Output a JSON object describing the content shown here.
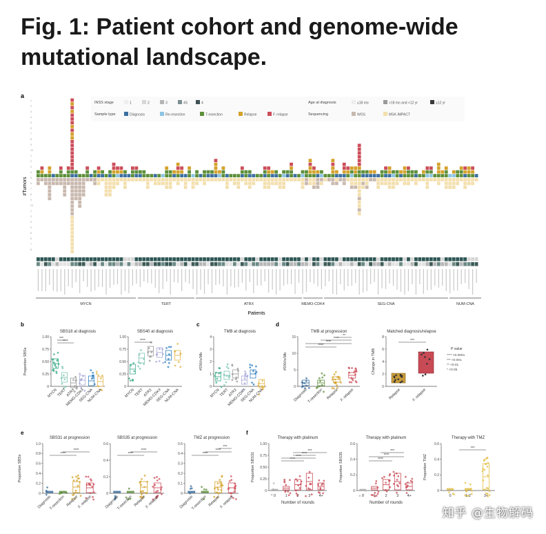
{
  "title": "Fig. 1: Patient cohort and genome-wide mutational landscape.",
  "panel_a": {
    "label": "a",
    "y_title": "#Tumors",
    "x_title": "Patients",
    "legend": {
      "inss_title": "INSS stage",
      "inss_items": [
        "1",
        "2",
        "3",
        "4S",
        "4"
      ],
      "sample_title": "Sample type",
      "sample_items": [
        "Diagnosis",
        "Re-resection",
        "T-resection",
        "Relapse",
        "F. relapse"
      ],
      "age_title": "Age at diagnosis",
      "age_items": [
        "≤18 mo",
        ">18 mo and <12 yr",
        "≥12 yr"
      ],
      "seq_title": "Sequencing",
      "seq_items": [
        "WGS",
        "MSK-IMPACT"
      ]
    },
    "groups": [
      "MYCN",
      "TERT",
      "ATRX",
      "MEMO-CDK4",
      "SEG-CNA",
      "NUM-CNA"
    ]
  },
  "panel_b": {
    "label": "b",
    "plots": [
      {
        "title": "SBS18 at diagnosis",
        "ylabel": "Proportion SBSs"
      },
      {
        "title": "SBS40 at diagnosis",
        "ylabel": ""
      }
    ],
    "categories": [
      "MYCN",
      "TERT",
      "ATRX",
      "MEMO-CDK4",
      "SEG-CNA",
      "NUM-CNA"
    ]
  },
  "panel_c": {
    "label": "c",
    "title": "TMB at diagnosis",
    "ylabel": "#SNVs/Mb",
    "categories": [
      "MYCN",
      "TERT",
      "ATRX",
      "MEMO-CDK4",
      "SEG-CNA",
      "NUM-CNA"
    ]
  },
  "panel_d": {
    "label": "d",
    "plots": [
      {
        "title": "TMB at progression",
        "ylabel": "#SNVs/Mb",
        "categories": [
          "Diagnosis",
          "T-resection",
          "Relapse",
          "F. relapse"
        ]
      },
      {
        "title": "Matched diagnosis/relapse",
        "ylabel": "Change in TMB",
        "categories": [
          "Relapse",
          "F. relapse"
        ]
      }
    ],
    "pvalue": {
      "title": "P value",
      "items": [
        "**** <0.0001",
        "*** <0.001",
        "** <0.01",
        "* <0.05"
      ]
    }
  },
  "panel_e": {
    "label": "e",
    "plots": [
      {
        "title": "SBS31 at progression",
        "ylabel": "Proportion SBSs"
      },
      {
        "title": "SBS35 at progression",
        "ylabel": ""
      },
      {
        "title": "TMZ at progression",
        "ylabel": ""
      }
    ],
    "categories": [
      "Diagnosis",
      "T-resection",
      "Relapse",
      "F. relapse"
    ]
  },
  "panel_f": {
    "label": "f",
    "plots": [
      {
        "title": "Therapy with platinum",
        "ylabel": "Proportion SBS31",
        "xlabel": "Number of rounds",
        "categories": [
          "0",
          "1",
          "2",
          "3",
          "4+"
        ]
      },
      {
        "title": "Therapy with platinum",
        "ylabel": "Proportion SBS35",
        "xlabel": "Number of rounds",
        "categories": [
          "0",
          "1",
          "2",
          "3",
          "4+"
        ]
      },
      {
        "title": "Therapy with TMZ",
        "ylabel": "Proportion TMZ",
        "xlabel": "",
        "categories": [
          "0",
          "1-2",
          "3+"
        ]
      }
    ]
  },
  "colors": {
    "diagnosis": "#3b6fa0",
    "reresection": "#8cc4e3",
    "tresection": "#5d8f3a",
    "relapse": "#d4a22c",
    "frelapse": "#cc4d5a",
    "wgs": "#c9b8ae",
    "msk": "#f3dfae",
    "green_point": "#3fae8c",
    "blue_point": "#2f7fc0"
  },
  "watermark": "知乎 @生物解码"
}
